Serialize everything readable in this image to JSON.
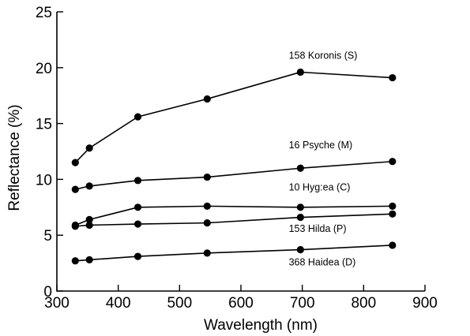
{
  "chart_data": {
    "type": "line",
    "title": "",
    "xlabel": "Wavelength (nm)",
    "ylabel": "Reflectance (%)",
    "xlim": [
      300,
      900
    ],
    "ylim": [
      0,
      25
    ],
    "xticks": [
      300,
      400,
      500,
      600,
      700,
      800,
      900
    ],
    "yticks": [
      0,
      5,
      10,
      15,
      20,
      25
    ],
    "grid": false,
    "legend": "inline-right",
    "series": [
      {
        "name": "158 Koronis (S)",
        "x": [
          330,
          353,
          432,
          545,
          697,
          847
        ],
        "y": [
          11.5,
          12.8,
          15.6,
          17.2,
          19.6,
          19.1
        ]
      },
      {
        "name": "16 Psyche (M)",
        "x": [
          330,
          353,
          432,
          545,
          697,
          847
        ],
        "y": [
          9.1,
          9.4,
          9.9,
          10.2,
          11.0,
          11.6
        ]
      },
      {
        "name": "10 Hygiea (C)",
        "x": [
          330,
          353,
          432,
          545,
          697,
          847
        ],
        "y": [
          5.9,
          6.4,
          7.5,
          7.6,
          7.5,
          7.6
        ]
      },
      {
        "name": "153 Hilda (P)",
        "x": [
          330,
          353,
          432,
          545,
          697,
          847
        ],
        "y": [
          5.8,
          5.9,
          6.0,
          6.1,
          6.6,
          6.9
        ]
      },
      {
        "name": "368 Haidea (D)",
        "x": [
          330,
          353,
          432,
          545,
          697,
          847
        ],
        "y": [
          2.7,
          2.8,
          3.1,
          3.4,
          3.7,
          4.1
        ]
      }
    ],
    "labels": [
      {
        "text": "158 Koronis (S)",
        "x": 678,
        "y": 20.8
      },
      {
        "text": "16 Psyche (M)",
        "x": 678,
        "y": 12.8
      },
      {
        "text": "10 Hyg:ea (C)",
        "x": 678,
        "y": 9.0
      },
      {
        "text": "153 Hilda (P)",
        "x": 678,
        "y": 5.3
      },
      {
        "text": "368 Haidea (D)",
        "x": 678,
        "y": 2.3
      }
    ]
  }
}
